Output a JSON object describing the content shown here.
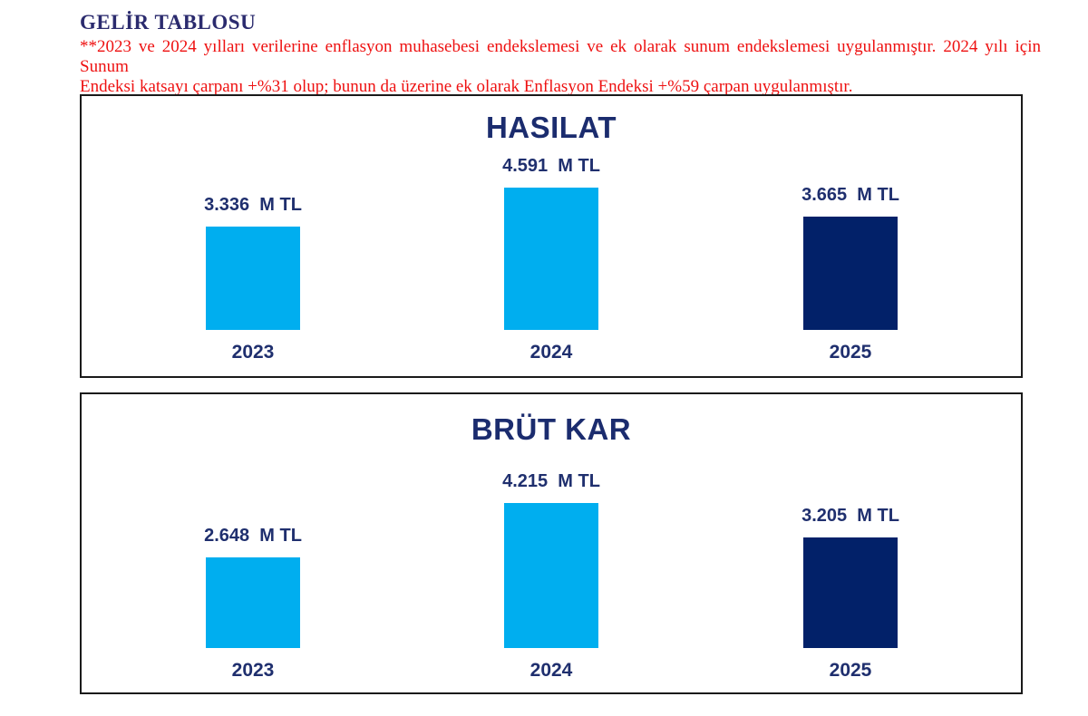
{
  "page": {
    "title": "GELİR TABLOSU",
    "note_line1": "**2023 ve 2024 yılları verilerine enflasyon muhasebesi endekslemesi ve ek olarak sunum endekslemesi uygulanmıştır. 2024 yılı için Sunum",
    "note_line2": "Endeksi katsayı çarpanı +%31 olup; bunun da üzerine ek olarak Enflasyon Endeksi +%59 çarpan uygulanmıştır."
  },
  "colors": {
    "light_blue": "#00AEEF",
    "dark_navy": "#022169",
    "label_navy": "#1F2F6E",
    "note_red": "#EE1111",
    "box_border": "#1A1A1A"
  },
  "chart_data": [
    {
      "type": "bar",
      "title": "HASILAT",
      "unit": "M TL",
      "categories": [
        "2023",
        "2024",
        "2025"
      ],
      "values": [
        3.336,
        4.591,
        3.665
      ],
      "value_labels": [
        "3.336  M TL",
        "4.591  M TL",
        "3.665  M TL"
      ],
      "bar_colors": [
        "#00AEEF",
        "#00AEEF",
        "#022169"
      ],
      "ylim": [
        0,
        4.591
      ],
      "grid": false,
      "legend": "none",
      "xlabel": "",
      "ylabel": ""
    },
    {
      "type": "bar",
      "title": "BRÜT KAR",
      "unit": "M TL",
      "categories": [
        "2023",
        "2024",
        "2025"
      ],
      "values": [
        2.648,
        4.215,
        3.205
      ],
      "value_labels": [
        "2.648  M TL",
        "4.215  M TL",
        "3.205  M TL"
      ],
      "bar_colors": [
        "#00AEEF",
        "#00AEEF",
        "#022169"
      ],
      "ylim": [
        0,
        4.215
      ],
      "grid": false,
      "legend": "none",
      "xlabel": "",
      "ylabel": ""
    }
  ]
}
